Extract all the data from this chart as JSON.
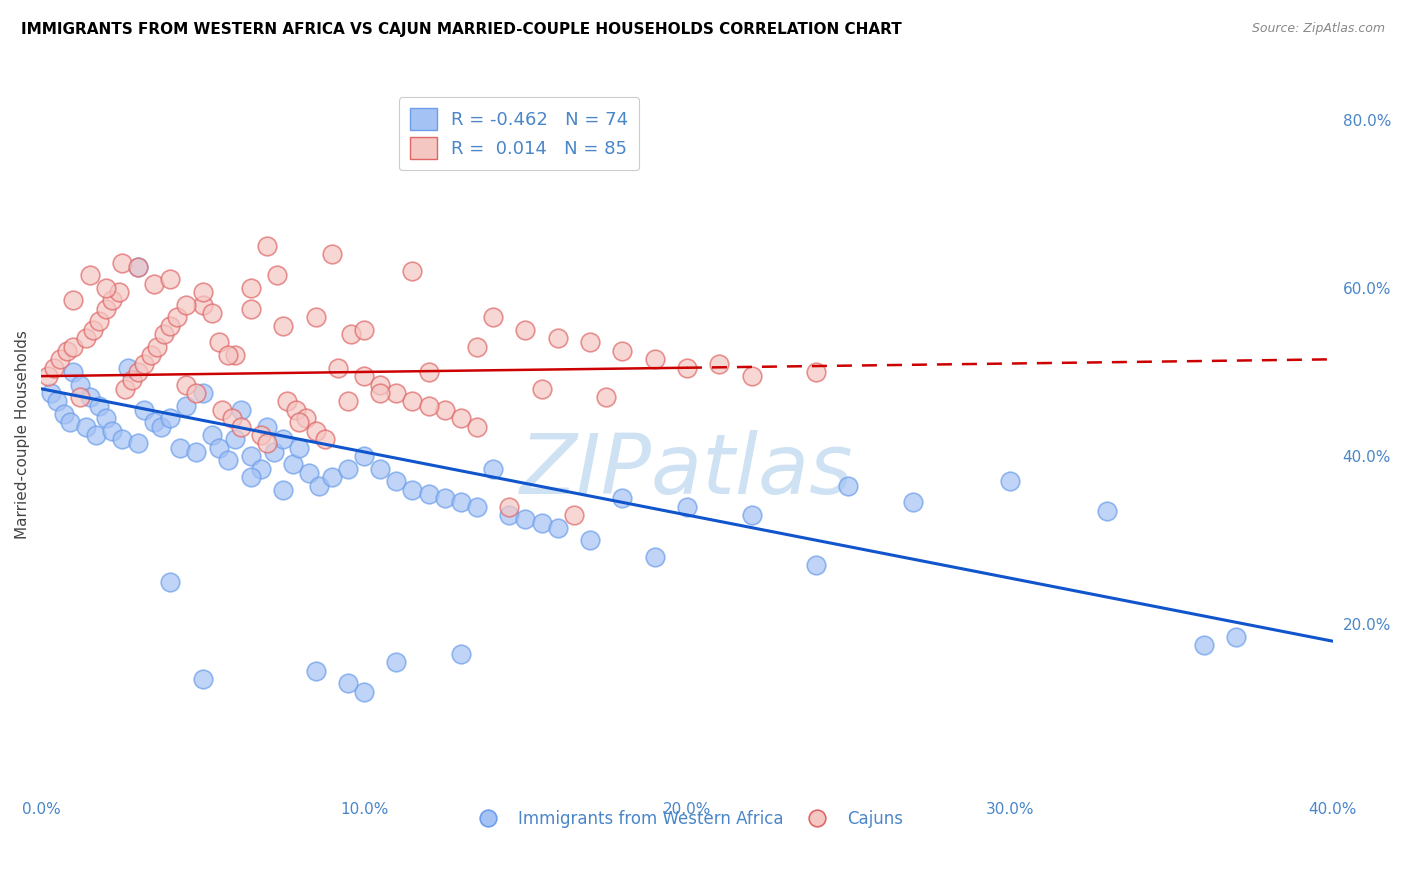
{
  "title": "IMMIGRANTS FROM WESTERN AFRICA VS CAJUN MARRIED-COUPLE HOUSEHOLDS CORRELATION CHART",
  "source": "Source: ZipAtlas.com",
  "ylabel": "Married-couple Households",
  "legend_label_blue": "Immigrants from Western Africa",
  "legend_label_pink": "Cajuns",
  "blue_color": "#a4c2f4",
  "pink_color": "#f4c7c3",
  "blue_edge_color": "#6d9eeb",
  "pink_edge_color": "#e06666",
  "blue_line_color": "#1155cc",
  "pink_line_color": "#cc0000",
  "watermark": "ZIPatlas",
  "watermark_color": "#cfe2f3",
  "blue_scatter_x": [
    0.3,
    0.5,
    0.7,
    0.9,
    1.0,
    1.2,
    1.4,
    1.5,
    1.7,
    1.8,
    2.0,
    2.2,
    2.5,
    2.7,
    3.0,
    3.2,
    3.5,
    3.7,
    4.0,
    4.3,
    4.5,
    4.8,
    5.0,
    5.3,
    5.5,
    5.8,
    6.0,
    6.2,
    6.5,
    6.8,
    7.0,
    7.2,
    7.5,
    7.8,
    8.0,
    8.3,
    8.6,
    9.0,
    9.5,
    10.0,
    10.5,
    11.0,
    11.5,
    12.0,
    12.5,
    13.0,
    13.5,
    14.0,
    14.5,
    15.0,
    15.5,
    16.0,
    17.0,
    18.0,
    19.0,
    20.0,
    22.0,
    24.0,
    25.0,
    27.0,
    30.0,
    33.0,
    36.0,
    37.0,
    10.0,
    6.5,
    7.5,
    5.0,
    4.0,
    3.0,
    8.5,
    9.5,
    11.0,
    13.0
  ],
  "blue_scatter_y": [
    47.5,
    46.5,
    45.0,
    44.0,
    50.0,
    48.5,
    43.5,
    47.0,
    42.5,
    46.0,
    44.5,
    43.0,
    42.0,
    50.5,
    41.5,
    45.5,
    44.0,
    43.5,
    44.5,
    41.0,
    46.0,
    40.5,
    47.5,
    42.5,
    41.0,
    39.5,
    42.0,
    45.5,
    40.0,
    38.5,
    43.5,
    40.5,
    42.0,
    39.0,
    41.0,
    38.0,
    36.5,
    37.5,
    38.5,
    40.0,
    38.5,
    37.0,
    36.0,
    35.5,
    35.0,
    34.5,
    34.0,
    38.5,
    33.0,
    32.5,
    32.0,
    31.5,
    30.0,
    35.0,
    28.0,
    34.0,
    33.0,
    27.0,
    36.5,
    34.5,
    37.0,
    33.5,
    17.5,
    18.5,
    12.0,
    37.5,
    36.0,
    13.5,
    25.0,
    62.5,
    14.5,
    13.0,
    15.5,
    16.5
  ],
  "pink_scatter_x": [
    0.2,
    0.4,
    0.6,
    0.8,
    1.0,
    1.2,
    1.4,
    1.6,
    1.8,
    2.0,
    2.2,
    2.4,
    2.6,
    2.8,
    3.0,
    3.2,
    3.4,
    3.6,
    3.8,
    4.0,
    4.2,
    4.5,
    4.8,
    5.0,
    5.3,
    5.6,
    5.9,
    6.2,
    6.5,
    6.8,
    7.0,
    7.3,
    7.6,
    7.9,
    8.2,
    8.5,
    8.8,
    9.2,
    9.6,
    10.0,
    10.5,
    11.0,
    11.5,
    12.0,
    12.5,
    13.0,
    13.5,
    14.0,
    15.0,
    16.0,
    17.0,
    18.0,
    19.0,
    20.0,
    22.0,
    5.5,
    3.5,
    6.0,
    4.5,
    7.5,
    8.0,
    9.5,
    10.5,
    12.0,
    14.5,
    16.5,
    1.5,
    2.5,
    3.0,
    5.0,
    6.5,
    8.5,
    10.0,
    13.5,
    15.5,
    17.5,
    7.0,
    9.0,
    11.5,
    4.0,
    2.0,
    1.0,
    5.8,
    21.0,
    24.0
  ],
  "pink_scatter_y": [
    49.5,
    50.5,
    51.5,
    52.5,
    53.0,
    47.0,
    54.0,
    55.0,
    56.0,
    57.5,
    58.5,
    59.5,
    48.0,
    49.0,
    50.0,
    51.0,
    52.0,
    53.0,
    54.5,
    55.5,
    56.5,
    48.5,
    47.5,
    58.0,
    57.0,
    45.5,
    44.5,
    43.5,
    60.0,
    42.5,
    41.5,
    61.5,
    46.5,
    45.5,
    44.5,
    43.0,
    42.0,
    50.5,
    54.5,
    49.5,
    48.5,
    47.5,
    46.5,
    50.0,
    45.5,
    44.5,
    43.5,
    56.5,
    55.0,
    54.0,
    53.5,
    52.5,
    51.5,
    50.5,
    49.5,
    53.5,
    60.5,
    52.0,
    58.0,
    55.5,
    44.0,
    46.5,
    47.5,
    46.0,
    34.0,
    33.0,
    61.5,
    63.0,
    62.5,
    59.5,
    57.5,
    56.5,
    55.0,
    53.0,
    48.0,
    47.0,
    65.0,
    64.0,
    62.0,
    61.0,
    60.0,
    58.5,
    52.0,
    51.0,
    50.0
  ],
  "xmin": 0.0,
  "xmax": 40.0,
  "ymin": 0.0,
  "ymax": 85.0,
  "blue_trend_x0": 0.0,
  "blue_trend_x1": 40.0,
  "blue_trend_y0": 48.0,
  "blue_trend_y1": 18.0,
  "pink_trend_x0": 0.0,
  "pink_trend_x1": 40.0,
  "pink_trend_y0": 49.5,
  "pink_trend_y1": 51.5,
  "pink_solid_x1": 20.0,
  "background_color": "#ffffff",
  "grid_color": "#cccccc",
  "title_color": "#000000",
  "axis_label_color": "#4a86c8",
  "right_ytick_vals": [
    20,
    40,
    60,
    80
  ],
  "xtick_vals": [
    0,
    10,
    20,
    30,
    40
  ]
}
